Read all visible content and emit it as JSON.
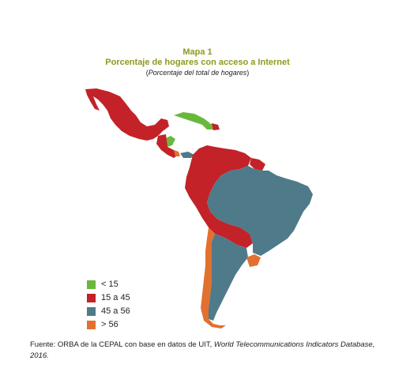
{
  "header": {
    "label": "Mapa 1",
    "title": "Porcentaje de hogares con acceso a Internet",
    "subtitle": "Porcentaje del total de hogares"
  },
  "colors": {
    "lt15": "#69b83d",
    "r15_45": "#c32228",
    "r45_56": "#4f7a8a",
    "gt56": "#e2702f",
    "title": "#8e9a1e"
  },
  "legend": [
    {
      "label": "< 15",
      "color": "#69b83d"
    },
    {
      "label": "15 a 45",
      "color": "#c32228"
    },
    {
      "label": "45 a 56",
      "color": "#4f7a8a"
    },
    {
      "label": "> 56",
      "color": "#e2702f"
    }
  ],
  "source": {
    "prefix": "Fuente: ORBA de la CEPAL con base en datos de UIT, ",
    "italic": "World Telecommunications Indicators Database, 2016."
  }
}
